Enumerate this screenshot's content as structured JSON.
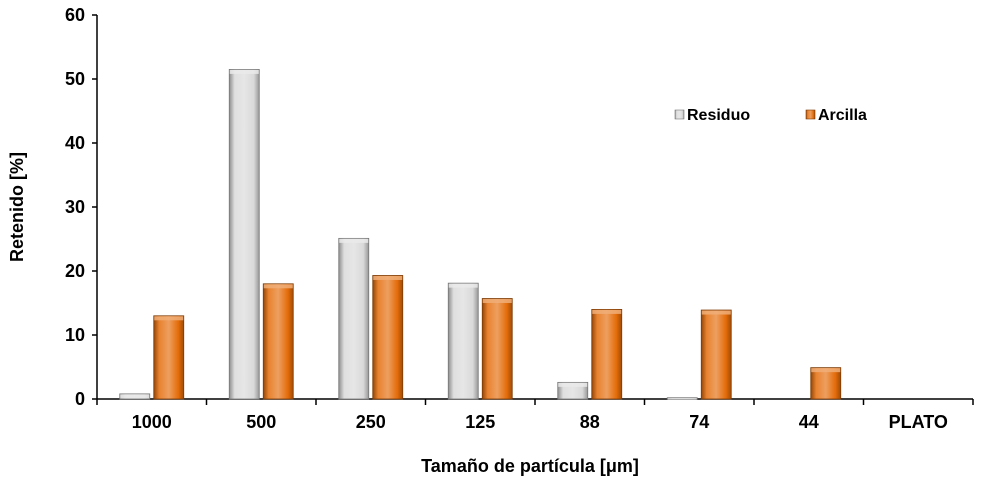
{
  "chart_data": {
    "type": "bar",
    "title": "",
    "xlabel": "Tamaño de partícula [μm]",
    "ylabel": "Retenido [%]",
    "categories": [
      "1000",
      "500",
      "250",
      "125",
      "88",
      "74",
      "44",
      "PLATO"
    ],
    "ylim": [
      0,
      60
    ],
    "yticks": [
      "0",
      "10",
      "20",
      "30",
      "40",
      "50",
      "60"
    ],
    "grid": false,
    "legend_position": "upper-right",
    "series": [
      {
        "name": "Residuo",
        "color": "#d9d9d9",
        "values": [
          0.8,
          51.5,
          25.1,
          18.1,
          2.6,
          0.2,
          0,
          0
        ]
      },
      {
        "name": "Arcilla",
        "color": "#e46c0a",
        "values": [
          13.0,
          18.0,
          19.3,
          15.7,
          14.0,
          13.9,
          4.9,
          0
        ]
      }
    ]
  }
}
